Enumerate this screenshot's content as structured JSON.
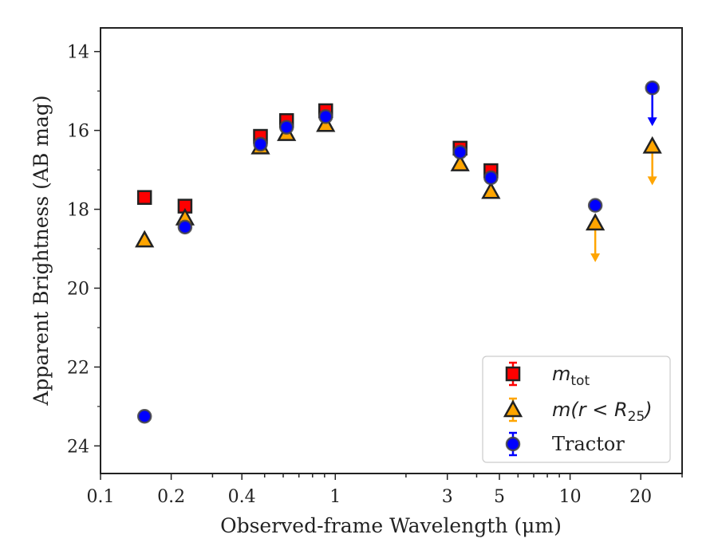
{
  "chart_data": {
    "type": "scatter",
    "xlabel": "Observed-frame Wavelength (μm)",
    "ylabel": "Apparent Brightness (AB mag)",
    "xscale": "log",
    "xlim": [
      0.1,
      30
    ],
    "ylim": [
      24.7,
      13.4
    ],
    "y_inverted": true,
    "x_ticks": [
      0.1,
      0.2,
      0.4,
      1,
      3,
      5,
      10,
      20
    ],
    "x_tick_labels": [
      "0.1",
      "0.2",
      "0.4",
      "1",
      "3",
      "5",
      "10",
      "20"
    ],
    "y_ticks": [
      14,
      16,
      18,
      20,
      22,
      24
    ],
    "y_tick_labels": [
      "14",
      "16",
      "18",
      "20",
      "22",
      "24"
    ],
    "grid": false,
    "legend_position": "lower-right",
    "series": [
      {
        "name_main": "m",
        "name_sub": "tot",
        "marker": "square",
        "color": "#ff0000",
        "points": [
          {
            "x": 0.154,
            "y": 17.7
          },
          {
            "x": 0.229,
            "y": 17.92
          },
          {
            "x": 0.48,
            "y": 16.15
          },
          {
            "x": 0.62,
            "y": 15.75
          },
          {
            "x": 0.91,
            "y": 15.5
          },
          {
            "x": 3.4,
            "y": 16.45
          },
          {
            "x": 4.6,
            "y": 17.02
          }
        ]
      },
      {
        "name_main": "m(r < R",
        "name_sub": "25",
        "name_end": ")",
        "marker": "triangle",
        "color": "#ffa500",
        "points": [
          {
            "x": 0.154,
            "y": 18.78
          },
          {
            "x": 0.229,
            "y": 18.22
          },
          {
            "x": 0.48,
            "y": 16.42
          },
          {
            "x": 0.62,
            "y": 16.08
          },
          {
            "x": 0.91,
            "y": 15.85
          },
          {
            "x": 3.4,
            "y": 16.85
          },
          {
            "x": 4.6,
            "y": 17.55
          },
          {
            "x": 12.8,
            "y": 18.35,
            "upper_limit": true,
            "arrow_to": 19.3
          },
          {
            "x": 22.4,
            "y": 16.4,
            "upper_limit": true,
            "arrow_to": 17.35
          }
        ]
      },
      {
        "name": "Tractor",
        "marker": "circle",
        "color": "#0000ff",
        "points": [
          {
            "x": 0.154,
            "y": 23.25
          },
          {
            "x": 0.229,
            "y": 18.45
          },
          {
            "x": 0.48,
            "y": 16.35
          },
          {
            "x": 0.62,
            "y": 15.92
          },
          {
            "x": 0.91,
            "y": 15.65
          },
          {
            "x": 3.4,
            "y": 16.55
          },
          {
            "x": 4.6,
            "y": 17.2
          },
          {
            "x": 12.8,
            "y": 17.9
          },
          {
            "x": 22.4,
            "y": 14.92,
            "upper_limit": true,
            "arrow_to": 15.85
          }
        ]
      }
    ]
  }
}
